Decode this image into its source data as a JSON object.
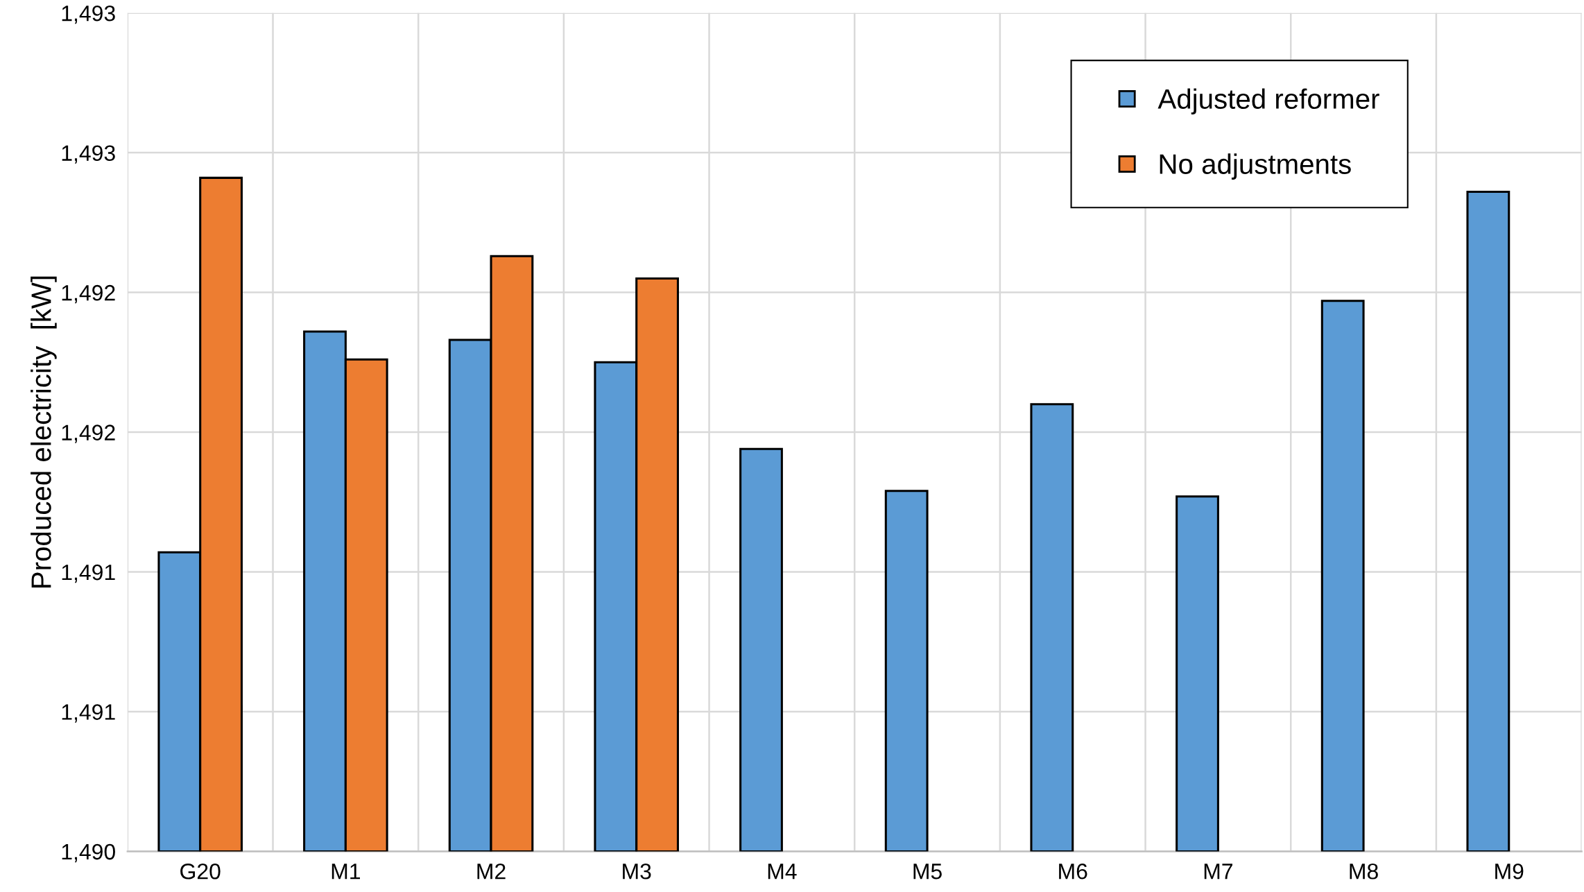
{
  "chart_data": {
    "type": "bar",
    "ylabel": "Produced electricity  [kW]",
    "categories": [
      "G20",
      "M1",
      "M2",
      "M3",
      "M4",
      "M5",
      "M6",
      "M7",
      "M8",
      "M9"
    ],
    "series": [
      {
        "name": "Adjusted reformer",
        "color": "#5b9bd5",
        "values": [
          1491.07,
          1491.86,
          1491.83,
          1491.75,
          1491.44,
          1491.29,
          1491.6,
          1491.27,
          1491.97,
          1492.36
        ]
      },
      {
        "name": "No adjustments",
        "color": "#ed7d31",
        "values": [
          1492.41,
          1491.76,
          1492.13,
          1492.05,
          null,
          null,
          null,
          null,
          null,
          null
        ]
      }
    ],
    "ylim": [
      1490,
      1493
    ],
    "yticks": [
      {
        "value": 1490,
        "label": "1,490"
      },
      {
        "value": 1490.5,
        "label": "1,491"
      },
      {
        "value": 1491,
        "label": "1,491"
      },
      {
        "value": 1491.5,
        "label": "1,492"
      },
      {
        "value": 1492,
        "label": "1,492"
      },
      {
        "value": 1492.5,
        "label": "1,493"
      },
      {
        "value": 1493,
        "label": "1,493"
      }
    ],
    "grid": true,
    "legend": "top right"
  }
}
